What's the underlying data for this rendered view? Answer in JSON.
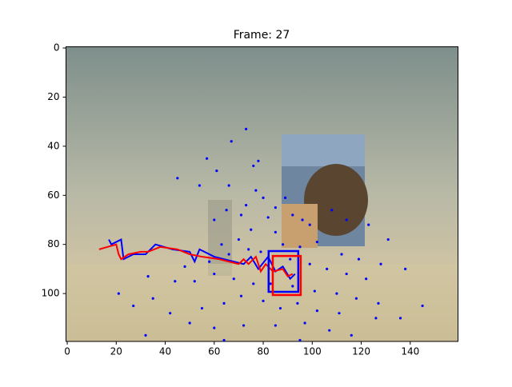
{
  "chart_data": {
    "type": "scatter",
    "title": "Frame: 27",
    "xlim": [
      -0.5,
      159.5
    ],
    "ylim": [
      119.5,
      -0.5
    ],
    "xticks": [
      0,
      20,
      40,
      60,
      80,
      100,
      120,
      140
    ],
    "yticks": [
      0,
      20,
      40,
      60,
      80,
      100
    ],
    "points": {
      "color": "#0000ff",
      "x": [
        73,
        67,
        76,
        57,
        61,
        78,
        66,
        45,
        54,
        77,
        89,
        85,
        80,
        73,
        65,
        60,
        71,
        82,
        92,
        96,
        99,
        108,
        114,
        123,
        131,
        75,
        85,
        70,
        63,
        88,
        95,
        102,
        112,
        119,
        128,
        58,
        66,
        74,
        79,
        91,
        99,
        106,
        114,
        122,
        138,
        33,
        44,
        52,
        60,
        68,
        76,
        83,
        92,
        101,
        110,
        118,
        127,
        145,
        27,
        35,
        42,
        55,
        64,
        71,
        80,
        87,
        94,
        102,
        111,
        126,
        136,
        50,
        60,
        72,
        85,
        97,
        107,
        116,
        32,
        64,
        95,
        21,
        48
      ],
      "y": [
        33,
        38,
        48,
        45,
        50,
        46,
        56,
        53,
        56,
        58,
        61,
        65,
        61,
        64,
        66,
        70,
        68,
        69,
        68,
        70,
        72,
        66,
        70,
        72,
        78,
        74,
        75,
        78,
        80,
        80,
        81,
        79,
        84,
        86,
        88,
        87,
        84,
        82,
        83,
        86,
        88,
        90,
        92,
        94,
        90,
        93,
        95,
        95,
        92,
        94,
        96,
        96,
        97,
        99,
        100,
        102,
        104,
        105,
        105,
        102,
        108,
        106,
        104,
        101,
        103,
        106,
        104,
        107,
        108,
        110,
        110,
        112,
        114,
        113,
        113,
        112,
        115,
        117,
        117,
        119,
        119,
        100,
        89
      ]
    },
    "lines": [
      {
        "color": "#0000ff",
        "x": [
          17,
          18,
          22,
          23,
          27,
          32,
          36,
          43,
          50,
          52,
          54,
          60,
          68,
          72,
          75,
          78,
          82,
          85,
          88,
          91,
          93
        ],
        "y": [
          78,
          80,
          78,
          86,
          84,
          84,
          80,
          82,
          83,
          87,
          82,
          85,
          87,
          88,
          85,
          90,
          85,
          91,
          89,
          94,
          92
        ]
      },
      {
        "color": "#ff0000",
        "x": [
          13,
          20,
          21,
          22,
          25,
          30,
          33,
          38,
          45,
          50,
          55,
          62,
          70,
          72,
          74,
          77,
          79,
          81,
          84,
          88,
          90,
          92
        ],
        "y": [
          82,
          80,
          84,
          86,
          84,
          83,
          83,
          81,
          82,
          84,
          85,
          86,
          88,
          86,
          88,
          85,
          91,
          88,
          91,
          90,
          93,
          92
        ]
      }
    ],
    "rects": [
      {
        "color": "#0000ff",
        "x": 82.2,
        "y": 82.7,
        "width": 12.1,
        "height": 16.6
      },
      {
        "color": "#ff0000",
        "x": 83.9,
        "y": 84.7,
        "width": 11.4,
        "height": 15.9
      }
    ]
  }
}
